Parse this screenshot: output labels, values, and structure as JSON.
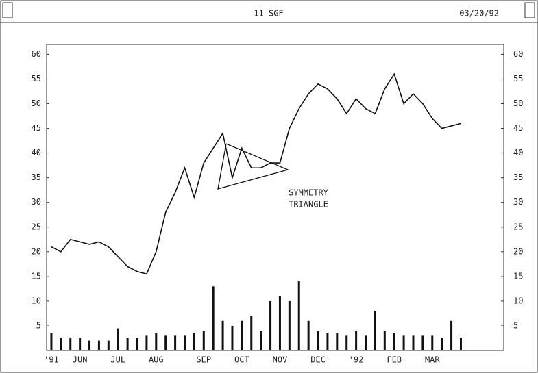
{
  "chart_data": {
    "type": "line",
    "title": "11 SGF",
    "date": "03/20/92",
    "annotation": [
      "SYMMETRY",
      "TRIANGLE"
    ],
    "categories": [
      "'91",
      null,
      null,
      "JUN",
      null,
      null,
      null,
      "JUL",
      null,
      null,
      null,
      "AUG",
      null,
      null,
      null,
      null,
      "SEP",
      null,
      null,
      null,
      "OCT",
      null,
      null,
      null,
      "NOV",
      null,
      null,
      null,
      "DEC",
      null,
      null,
      null,
      "'92",
      null,
      null,
      null,
      "FEB",
      null,
      null,
      null,
      "MAR",
      null,
      null,
      null,
      null,
      null,
      null,
      null
    ],
    "values": [
      21,
      20,
      22.5,
      22,
      21.5,
      22,
      21,
      19,
      17,
      16,
      15.5,
      20,
      28,
      32,
      37,
      31,
      38,
      41,
      44,
      35,
      41,
      37,
      37,
      38,
      38,
      45,
      49,
      52,
      54,
      53,
      51,
      48,
      51,
      49,
      48,
      53,
      56,
      50,
      52,
      50,
      47,
      45,
      45.5,
      46,
      null,
      null,
      null,
      null
    ],
    "volume": [
      3.5,
      2.5,
      2.5,
      2.5,
      2,
      2,
      2,
      4.5,
      2.5,
      2.5,
      3,
      3.5,
      3,
      3,
      3,
      3.5,
      4,
      13,
      6,
      5,
      6,
      7,
      4,
      10,
      11,
      10,
      14,
      6,
      4,
      3.5,
      3.5,
      3,
      4,
      3,
      8,
      4,
      3.5,
      3,
      3,
      3,
      3,
      2.5,
      6,
      2.5,
      null,
      null,
      null,
      null
    ],
    "color": "#111111",
    "ylim": [
      0,
      62
    ],
    "yticks": [
      5,
      10,
      15,
      20,
      25,
      30,
      35,
      40,
      45,
      50,
      55,
      60
    ]
  }
}
